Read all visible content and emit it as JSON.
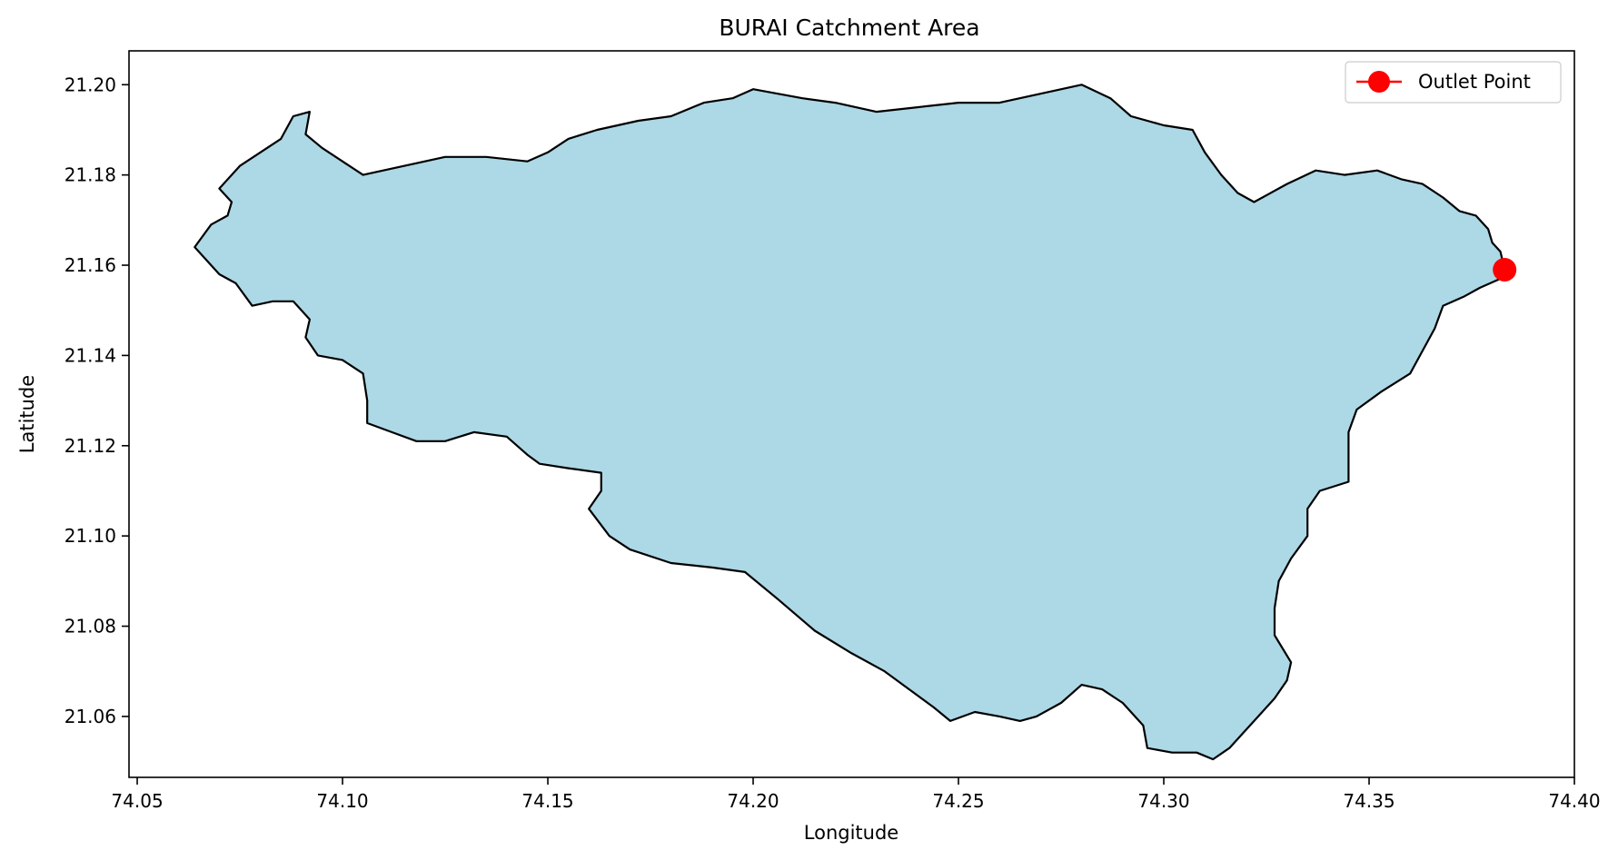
{
  "chart_data": {
    "type": "map",
    "title": "BURAI Catchment Area",
    "xlabel": "Longitude",
    "ylabel": "Latitude",
    "xlim": [
      74.048,
      74.4
    ],
    "ylim": [
      21.0465,
      21.2075
    ],
    "x_ticks": [
      "74.05",
      "74.10",
      "74.15",
      "74.20",
      "74.25",
      "74.30",
      "74.35",
      "74.40"
    ],
    "y_ticks": [
      "21.06",
      "21.08",
      "21.10",
      "21.12",
      "21.14",
      "21.16",
      "21.18",
      "21.20"
    ],
    "grid": false,
    "legend_position": "top-right",
    "legend": [
      {
        "label": "Outlet Point",
        "marker": "circle",
        "color": "#ff0000"
      }
    ],
    "catchment": {
      "fill": "#add8e6",
      "edge": "#000000",
      "boundary": [
        [
          74.064,
          21.164
        ],
        [
          74.068,
          21.169
        ],
        [
          74.072,
          21.171
        ],
        [
          74.073,
          21.174
        ],
        [
          74.07,
          21.177
        ],
        [
          74.075,
          21.182
        ],
        [
          74.08,
          21.185
        ],
        [
          74.085,
          21.188
        ],
        [
          74.088,
          21.193
        ],
        [
          74.092,
          21.194
        ],
        [
          74.091,
          21.189
        ],
        [
          74.095,
          21.186
        ],
        [
          74.1,
          21.183
        ],
        [
          74.105,
          21.18
        ],
        [
          74.115,
          21.182
        ],
        [
          74.125,
          21.184
        ],
        [
          74.135,
          21.184
        ],
        [
          74.145,
          21.183
        ],
        [
          74.15,
          21.185
        ],
        [
          74.155,
          21.188
        ],
        [
          74.162,
          21.19
        ],
        [
          74.172,
          21.192
        ],
        [
          74.18,
          21.193
        ],
        [
          74.188,
          21.196
        ],
        [
          74.195,
          21.197
        ],
        [
          74.2,
          21.199
        ],
        [
          74.206,
          21.198
        ],
        [
          74.212,
          21.197
        ],
        [
          74.22,
          21.196
        ],
        [
          74.23,
          21.194
        ],
        [
          74.24,
          21.195
        ],
        [
          74.25,
          21.196
        ],
        [
          74.26,
          21.196
        ],
        [
          74.27,
          21.198
        ],
        [
          74.28,
          21.2
        ],
        [
          74.287,
          21.197
        ],
        [
          74.292,
          21.193
        ],
        [
          74.3,
          21.191
        ],
        [
          74.307,
          21.19
        ],
        [
          74.31,
          21.185
        ],
        [
          74.314,
          21.18
        ],
        [
          74.318,
          21.176
        ],
        [
          74.322,
          21.174
        ],
        [
          74.33,
          21.178
        ],
        [
          74.337,
          21.181
        ],
        [
          74.344,
          21.18
        ],
        [
          74.352,
          21.181
        ],
        [
          74.358,
          21.179
        ],
        [
          74.363,
          21.178
        ],
        [
          74.368,
          21.175
        ],
        [
          74.372,
          21.172
        ],
        [
          74.376,
          21.171
        ],
        [
          74.379,
          21.168
        ],
        [
          74.38,
          21.165
        ],
        [
          74.382,
          21.163
        ],
        [
          74.383,
          21.159
        ],
        [
          74.382,
          21.157
        ],
        [
          74.377,
          21.155
        ],
        [
          74.373,
          21.153
        ],
        [
          74.368,
          21.151
        ],
        [
          74.366,
          21.146
        ],
        [
          74.363,
          21.141
        ],
        [
          74.36,
          21.136
        ],
        [
          74.353,
          21.132
        ],
        [
          74.347,
          21.128
        ],
        [
          74.345,
          21.123
        ],
        [
          74.345,
          21.118
        ],
        [
          74.345,
          21.112
        ],
        [
          74.338,
          21.11
        ],
        [
          74.335,
          21.106
        ],
        [
          74.335,
          21.1
        ],
        [
          74.331,
          21.095
        ],
        [
          74.328,
          21.09
        ],
        [
          74.327,
          21.084
        ],
        [
          74.327,
          21.078
        ],
        [
          74.331,
          21.072
        ],
        [
          74.33,
          21.068
        ],
        [
          74.327,
          21.064
        ],
        [
          74.323,
          21.06
        ],
        [
          74.319,
          21.056
        ],
        [
          74.316,
          21.053
        ],
        [
          74.312,
          21.0505
        ],
        [
          74.308,
          21.052
        ],
        [
          74.302,
          21.052
        ],
        [
          74.296,
          21.053
        ],
        [
          74.295,
          21.058
        ],
        [
          74.29,
          21.063
        ],
        [
          74.285,
          21.066
        ],
        [
          74.28,
          21.067
        ],
        [
          74.275,
          21.063
        ],
        [
          74.269,
          21.06
        ],
        [
          74.265,
          21.059
        ],
        [
          74.26,
          21.06
        ],
        [
          74.254,
          21.061
        ],
        [
          74.248,
          21.059
        ],
        [
          74.244,
          21.062
        ],
        [
          74.238,
          21.066
        ],
        [
          74.232,
          21.07
        ],
        [
          74.224,
          21.074
        ],
        [
          74.215,
          21.079
        ],
        [
          74.206,
          21.086
        ],
        [
          74.198,
          21.092
        ],
        [
          74.19,
          21.093
        ],
        [
          74.18,
          21.094
        ],
        [
          74.17,
          21.097
        ],
        [
          74.165,
          21.1
        ],
        [
          74.16,
          21.106
        ],
        [
          74.163,
          21.11
        ],
        [
          74.163,
          21.114
        ],
        [
          74.155,
          21.115
        ],
        [
          74.148,
          21.116
        ],
        [
          74.145,
          21.118
        ],
        [
          74.14,
          21.122
        ],
        [
          74.132,
          21.123
        ],
        [
          74.125,
          21.121
        ],
        [
          74.118,
          21.121
        ],
        [
          74.112,
          21.123
        ],
        [
          74.106,
          21.125
        ],
        [
          74.106,
          21.13
        ],
        [
          74.105,
          21.136
        ],
        [
          74.1,
          21.139
        ],
        [
          74.094,
          21.14
        ],
        [
          74.091,
          21.144
        ],
        [
          74.092,
          21.148
        ],
        [
          74.088,
          21.152
        ],
        [
          74.083,
          21.152
        ],
        [
          74.078,
          21.151
        ],
        [
          74.074,
          21.156
        ],
        [
          74.07,
          21.158
        ],
        [
          74.067,
          21.161
        ]
      ]
    },
    "outlet_point": {
      "label": "Outlet Point",
      "x": 74.383,
      "y": 21.159,
      "color": "#ff0000"
    }
  }
}
